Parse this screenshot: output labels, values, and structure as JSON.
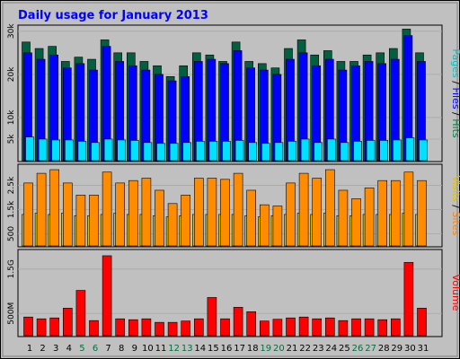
{
  "chart_data": [
    {
      "type": "bar",
      "title": "Daily usage for January 2013",
      "categories": [
        "1",
        "2",
        "3",
        "4",
        "5",
        "6",
        "7",
        "8",
        "9",
        "10",
        "11",
        "12",
        "13",
        "14",
        "15",
        "16",
        "17",
        "18",
        "19",
        "20",
        "21",
        "22",
        "23",
        "24",
        "25",
        "26",
        "27",
        "28",
        "29",
        "30",
        "31"
      ],
      "weekend_days": [
        "5",
        "6",
        "12",
        "13",
        "19",
        "20",
        "26",
        "27"
      ],
      "ylabel_parts": [
        {
          "text": "Pages",
          "color": "#00c0c0"
        },
        {
          "text": " / ",
          "color": "#000000"
        },
        {
          "text": "Files",
          "color": "#0000ff"
        },
        {
          "text": " / ",
          "color": "#000000"
        },
        {
          "text": "Hits",
          "color": "#008040"
        }
      ],
      "yticks": [
        {
          "v": 5000,
          "label": "5k"
        },
        {
          "v": 10000,
          "label": "10k"
        },
        {
          "v": 20000,
          "label": "20k"
        },
        {
          "v": 30000,
          "label": "30k"
        }
      ],
      "ylim": [
        0,
        31000
      ],
      "grid": true,
      "series": [
        {
          "name": "Hits",
          "color": "#006040",
          "values": [
            27500,
            26000,
            26500,
            23000,
            24000,
            23500,
            28000,
            25000,
            25000,
            23000,
            22000,
            19500,
            22000,
            25000,
            24500,
            23000,
            27500,
            23000,
            22500,
            21500,
            26000,
            28000,
            24500,
            25500,
            23000,
            23000,
            24500,
            25000,
            26000,
            30500,
            25000
          ]
        },
        {
          "name": "Files",
          "color": "#0000ff",
          "values": [
            25000,
            23500,
            24500,
            21500,
            22500,
            21000,
            26500,
            23000,
            22000,
            21000,
            20000,
            18500,
            19500,
            23000,
            23500,
            22500,
            25500,
            21500,
            21000,
            20000,
            23500,
            25000,
            22000,
            23500,
            21000,
            22000,
            23000,
            22500,
            23500,
            29000,
            23000
          ]
        },
        {
          "name": "Pages",
          "color": "#00e0ff",
          "values": [
            5500,
            5000,
            4800,
            4800,
            4500,
            4200,
            5000,
            4800,
            4700,
            4200,
            4000,
            4000,
            4200,
            4500,
            4500,
            4500,
            4700,
            4200,
            4000,
            4200,
            4500,
            5000,
            4200,
            5000,
            4200,
            4500,
            4700,
            4700,
            4800,
            5300,
            4800
          ]
        }
      ]
    },
    {
      "type": "bar",
      "categories": [
        "1",
        "2",
        "3",
        "4",
        "5",
        "6",
        "7",
        "8",
        "9",
        "10",
        "11",
        "12",
        "13",
        "14",
        "15",
        "16",
        "17",
        "18",
        "19",
        "20",
        "21",
        "22",
        "23",
        "24",
        "25",
        "26",
        "27",
        "28",
        "29",
        "30",
        "31"
      ],
      "ylabel_parts": [
        {
          "text": "Visits",
          "color": "#e0c000"
        },
        {
          "text": " / ",
          "color": "#000000"
        },
        {
          "text": "Sites",
          "color": "#ff8000"
        }
      ],
      "yticks": [
        {
          "v": 500,
          "label": "500"
        },
        {
          "v": 1500,
          "label": "1.5k"
        },
        {
          "v": 2500,
          "label": "2.5k"
        }
      ],
      "ylim": [
        0,
        3300
      ],
      "grid": true,
      "series": [
        {
          "name": "Sites",
          "color": "#ff8c00",
          "values": [
            2600,
            3000,
            3150,
            2600,
            2100,
            2100,
            3050,
            2600,
            2700,
            2800,
            2300,
            1750,
            2100,
            2800,
            2800,
            2750,
            3000,
            2300,
            1700,
            1650,
            2600,
            3000,
            2800,
            3150,
            2300,
            1950,
            2400,
            2700,
            2700,
            3050,
            2700
          ]
        },
        {
          "name": "Visits",
          "color": "#d8c000",
          "values": [
            1300,
            1350,
            1300,
            1350,
            1250,
            1250,
            1300,
            1350,
            1300,
            1300,
            1250,
            1200,
            1250,
            1300,
            1300,
            1300,
            1300,
            1250,
            1200,
            1250,
            1300,
            1350,
            1300,
            1350,
            1250,
            1250,
            1300,
            1300,
            1300,
            1350,
            1300
          ]
        }
      ]
    },
    {
      "type": "bar",
      "categories": [
        "1",
        "2",
        "3",
        "4",
        "5",
        "6",
        "7",
        "8",
        "9",
        "10",
        "11",
        "12",
        "13",
        "14",
        "15",
        "16",
        "17",
        "18",
        "19",
        "20",
        "21",
        "22",
        "23",
        "24",
        "25",
        "26",
        "27",
        "28",
        "29",
        "30",
        "31"
      ],
      "ylabel_parts": [
        {
          "text": "Volume",
          "color": "#ff0000"
        }
      ],
      "yticks": [
        {
          "v": 500,
          "label": "500M"
        },
        {
          "v": 1500,
          "label": "1.5G"
        }
      ],
      "ylim": [
        0,
        1900
      ],
      "grid": true,
      "series": [
        {
          "name": "Volume",
          "color": "#ff0000",
          "values": [
            420,
            380,
            400,
            620,
            1020,
            340,
            1800,
            380,
            360,
            380,
            300,
            300,
            330,
            380,
            860,
            380,
            640,
            540,
            330,
            370,
            400,
            420,
            380,
            400,
            340,
            380,
            380,
            360,
            380,
            1650,
            620
          ]
        }
      ]
    }
  ]
}
